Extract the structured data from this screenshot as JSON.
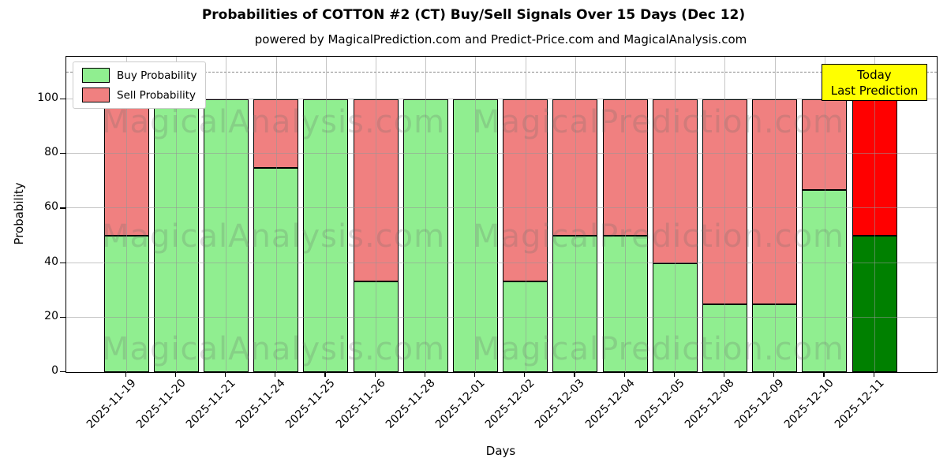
{
  "watermarks": {
    "left": "MagicalAnalysis.com",
    "right": "MagicalPrediction.com",
    "rows": 3
  },
  "chart_data": {
    "type": "bar",
    "stacked": true,
    "title": "Probabilities of COTTON #2 (CT) Buy/Sell Signals Over 15 Days (Dec 12)",
    "subtitle": "powered by MagicalPrediction.com and Predict-Price.com and MagicalAnalysis.com",
    "xlabel": "Days",
    "ylabel": "Probability",
    "categories": [
      "2025-11-19",
      "2025-11-20",
      "2025-11-21",
      "2025-11-24",
      "2025-11-25",
      "2025-11-26",
      "2025-11-28",
      "2025-12-01",
      "2025-12-02",
      "2025-12-03",
      "2025-12-04",
      "2025-12-05",
      "2025-12-08",
      "2025-12-09",
      "2025-12-10",
      "2025-12-11"
    ],
    "series": [
      {
        "name": "Buy Probability",
        "color": "#90ee90",
        "today_color": "#008000",
        "values": [
          50,
          100,
          100,
          75,
          100,
          33.33,
          100,
          100,
          33.33,
          50,
          50,
          40,
          25,
          25,
          66.67,
          50
        ]
      },
      {
        "name": "Sell Probability",
        "color": "#f08080",
        "today_color": "#ff0000",
        "values": [
          50,
          0,
          0,
          25,
          0,
          66.67,
          0,
          0,
          66.67,
          50,
          50,
          60,
          75,
          75,
          33.33,
          50
        ]
      }
    ],
    "today_index": 15,
    "yticks": [
      0,
      20,
      40,
      60,
      80,
      100
    ],
    "ylim": [
      0,
      115.6
    ],
    "dashed_line_y": 110,
    "grid": true,
    "grid_over_bars": true,
    "bar_edge_color": "#000000",
    "legend_position": "upper left",
    "annotation": {
      "line1": "Today",
      "line2": "Last Prediction",
      "bg": "#ffff00",
      "border": "#000000"
    }
  }
}
